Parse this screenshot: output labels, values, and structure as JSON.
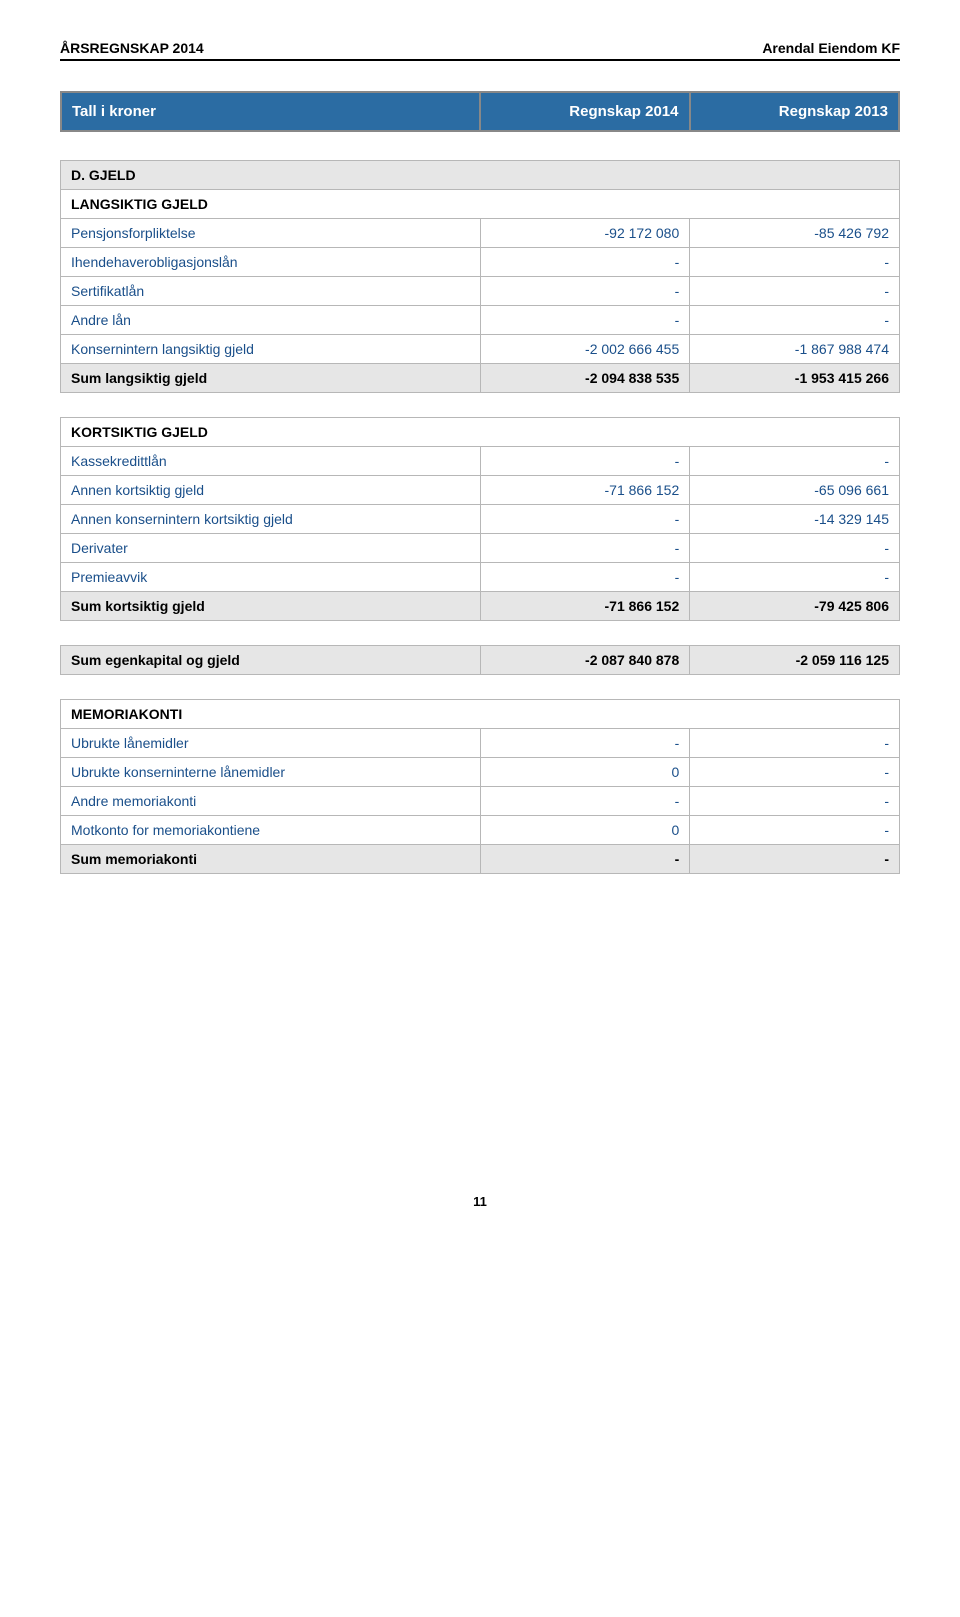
{
  "header": {
    "left": "ÅRSREGNSKAP 2014",
    "right": "Arendal Eiendom KF"
  },
  "mainHeader": {
    "col1": "Tall i kroner",
    "col2": "Regnskap 2014",
    "col3": "Regnskap 2013"
  },
  "section_gjeld": {
    "title": "D. GJELD",
    "subTitle": "LANGSIKTIG GJELD",
    "rows": [
      {
        "label": "Pensjonsforpliktelse",
        "v1": "-92 172 080",
        "v2": "-85 426 792"
      },
      {
        "label": "Ihendehaverobligasjonslån",
        "v1": "-",
        "v2": "-"
      },
      {
        "label": "Sertifikatlån",
        "v1": "-",
        "v2": "-"
      },
      {
        "label": "Andre lån",
        "v1": "-",
        "v2": "-"
      },
      {
        "label": "Konsernintern langsiktig gjeld",
        "v1": "-2 002 666 455",
        "v2": "-1 867 988 474"
      }
    ],
    "sum": {
      "label": "Sum langsiktig gjeld",
      "v1": "-2 094 838 535",
      "v2": "-1 953 415 266"
    }
  },
  "section_kort": {
    "title": "KORTSIKTIG GJELD",
    "rows": [
      {
        "label": "Kassekredittlån",
        "v1": "-",
        "v2": "-"
      },
      {
        "label": "Annen kortsiktig gjeld",
        "v1": "-71 866 152",
        "v2": "-65 096 661"
      },
      {
        "label": "Annen konsernintern kortsiktig gjeld",
        "v1": "-",
        "v2": "-14 329 145"
      },
      {
        "label": "Derivater",
        "v1": "-",
        "v2": "-"
      },
      {
        "label": "Premieavvik",
        "v1": "-",
        "v2": "-"
      }
    ],
    "sum": {
      "label": "Sum kortsiktig gjeld",
      "v1": "-71 866 152",
      "v2": "-79 425 806"
    }
  },
  "section_egen": {
    "sum": {
      "label": "Sum egenkapital og gjeld",
      "v1": "-2 087 840 878",
      "v2": "-2 059 116 125"
    }
  },
  "section_memo": {
    "title": "MEMORIAKONTI",
    "rows": [
      {
        "label": "Ubrukte lånemidler",
        "v1": "-",
        "v2": "-"
      },
      {
        "label": "Ubrukte konserninterne lånemidler",
        "v1": "0",
        "v2": "-"
      },
      {
        "label": "Andre memoriakonti",
        "v1": "-",
        "v2": "-"
      },
      {
        "label": "Motkonto for memoriakontiene",
        "v1": "0",
        "v2": "-"
      }
    ],
    "sum": {
      "label": "Sum memoriakonti",
      "v1": "-",
      "v2": "-"
    }
  },
  "pageNumber": "11",
  "styling": {
    "headerBg": "#2b6ca3",
    "headerText": "#ffffff",
    "sumBg": "#e6e6e6",
    "borderColor": "#b7b7b7",
    "dataText": "#1a4f8a",
    "fontFamily": "Arial",
    "baseFontSize": 14
  }
}
